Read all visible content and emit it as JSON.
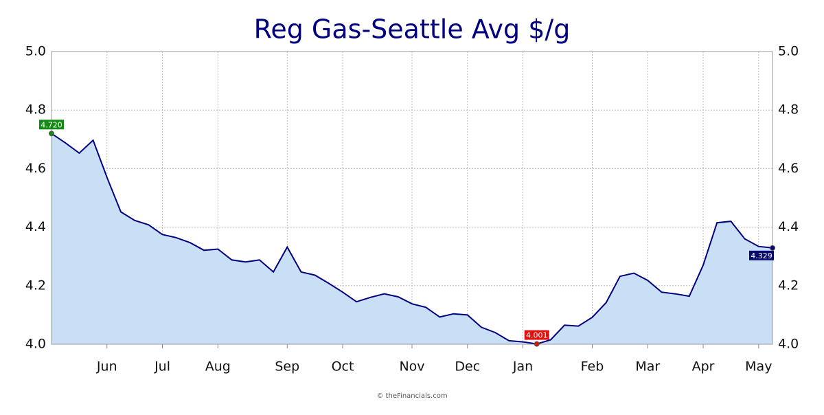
{
  "chart_data": {
    "type": "area",
    "title": "Reg Gas-Seattle Avg $/g",
    "source": "© theFinancials.com",
    "categories": [
      null,
      null,
      null,
      null,
      "Jun",
      null,
      null,
      null,
      "Jul",
      null,
      null,
      null,
      "Aug",
      null,
      null,
      null,
      null,
      "Sep",
      null,
      null,
      null,
      "Oct",
      null,
      null,
      null,
      null,
      "Nov",
      null,
      null,
      null,
      "Dec",
      null,
      null,
      null,
      "Jan",
      null,
      null,
      null,
      null,
      "Feb",
      null,
      null,
      null,
      "Mar",
      null,
      null,
      null,
      "Apr",
      null,
      null,
      null,
      "May",
      null
    ],
    "values": [
      4.72,
      4.688,
      4.653,
      4.697,
      4.57,
      4.452,
      4.423,
      4.408,
      4.375,
      4.364,
      4.347,
      4.321,
      4.325,
      4.288,
      4.281,
      4.288,
      4.247,
      4.332,
      4.247,
      4.236,
      4.208,
      4.178,
      4.145,
      4.16,
      4.172,
      4.162,
      4.138,
      4.126,
      4.093,
      4.104,
      4.1,
      4.058,
      4.04,
      4.012,
      4.008,
      4.001,
      4.015,
      4.065,
      4.062,
      4.092,
      4.142,
      4.232,
      4.243,
      4.218,
      4.178,
      4.172,
      4.164,
      4.27,
      4.415,
      4.42,
      4.36,
      4.334,
      4.329
    ],
    "value_labels": [
      "4.720",
      null,
      null,
      null,
      null,
      null,
      null,
      null,
      null,
      null,
      null,
      null,
      null,
      null,
      null,
      null,
      null,
      null,
      null,
      null,
      null,
      null,
      null,
      null,
      null,
      null,
      null,
      null,
      null,
      null,
      null,
      null,
      null,
      null,
      null,
      "4.001",
      null,
      null,
      null,
      null,
      null,
      null,
      null,
      null,
      null,
      null,
      null,
      null,
      null,
      null,
      null,
      null,
      "4.329"
    ],
    "value_label_colors": [
      "#138a13",
      null,
      null,
      null,
      null,
      null,
      null,
      null,
      null,
      null,
      null,
      null,
      null,
      null,
      null,
      null,
      null,
      null,
      null,
      null,
      null,
      null,
      null,
      null,
      null,
      null,
      null,
      null,
      null,
      null,
      null,
      null,
      null,
      null,
      null,
      "#e01010",
      null,
      null,
      null,
      null,
      null,
      null,
      null,
      null,
      null,
      null,
      null,
      null,
      null,
      null,
      null,
      null,
      "#0a0a6e"
    ],
    "color": "#000080",
    "fill": "#c9dff6",
    "ylim": [
      4.0,
      5.0
    ],
    "yticks": [
      {
        "value": 4.0,
        "label": "4.0"
      },
      4.2,
      4.4,
      4.6,
      4.8,
      {
        "value": 5.0,
        "label": "5.0"
      }
    ],
    "grid": true
  }
}
